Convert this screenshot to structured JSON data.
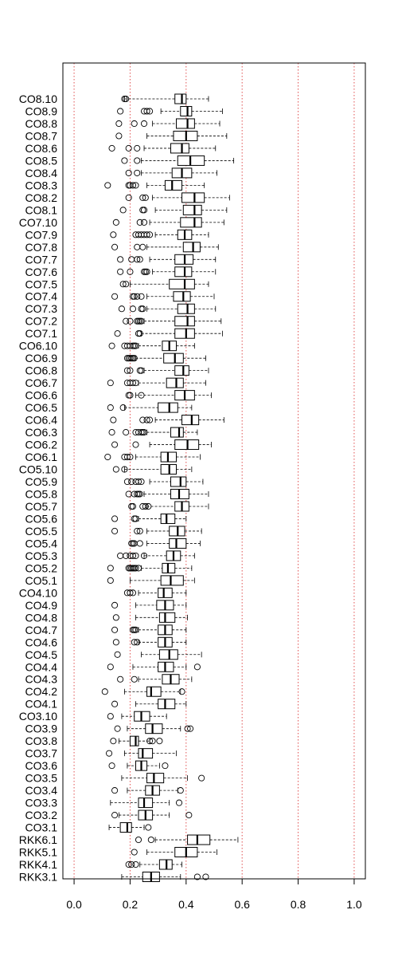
{
  "chart_data": {
    "type": "boxplot",
    "orientation": "horizontal",
    "title": "",
    "xlabel": "",
    "ylabel": "",
    "xlim": [
      -0.04,
      1.04
    ],
    "xticks": [
      0.0,
      0.2,
      0.4,
      0.6,
      0.8,
      1.0
    ],
    "xtick_labels": [
      "0.0",
      "0.2",
      "0.4",
      "0.6",
      "0.8",
      "1.0"
    ],
    "reference_lines": {
      "x": [
        0.0,
        0.2,
        0.4,
        0.6,
        0.8,
        1.0
      ],
      "color": "#e05050",
      "style": "dotted"
    },
    "grid": false,
    "box_order": "top-to-bottom",
    "colors": {
      "box": "#000000",
      "median": "#000000",
      "whisker": "#000000",
      "reference": "#e05050"
    },
    "series": [
      {
        "name": "CO8.10",
        "whislo": 0.18,
        "q1": 0.36,
        "median": 0.385,
        "q3": 0.4,
        "whishi": 0.48,
        "outliers": [
          0.18,
          0.185
        ]
      },
      {
        "name": "CO8.9",
        "whislo": 0.31,
        "q1": 0.38,
        "median": 0.405,
        "q3": 0.42,
        "whishi": 0.53,
        "outliers": [
          0.165,
          0.25,
          0.26,
          0.27
        ]
      },
      {
        "name": "CO8.8",
        "whislo": 0.28,
        "q1": 0.365,
        "median": 0.405,
        "q3": 0.43,
        "whishi": 0.52,
        "outliers": [
          0.16,
          0.215,
          0.25
        ]
      },
      {
        "name": "CO8.7",
        "whislo": 0.26,
        "q1": 0.355,
        "median": 0.4,
        "q3": 0.44,
        "whishi": 0.545,
        "outliers": [
          0.16
        ]
      },
      {
        "name": "CO8.6",
        "whislo": 0.25,
        "q1": 0.345,
        "median": 0.385,
        "q3": 0.41,
        "whishi": 0.505,
        "outliers": [
          0.135,
          0.195,
          0.225
        ]
      },
      {
        "name": "CO8.5",
        "whislo": 0.24,
        "q1": 0.37,
        "median": 0.415,
        "q3": 0.465,
        "whishi": 0.57,
        "outliers": [
          0.18,
          0.225
        ]
      },
      {
        "name": "CO8.4",
        "whislo": 0.24,
        "q1": 0.35,
        "median": 0.385,
        "q3": 0.42,
        "whishi": 0.51,
        "outliers": [
          0.195,
          0.225
        ]
      },
      {
        "name": "CO8.3",
        "whislo": 0.26,
        "q1": 0.325,
        "median": 0.35,
        "q3": 0.385,
        "whishi": 0.465,
        "outliers": [
          0.12,
          0.195,
          0.2,
          0.21,
          0.22
        ]
      },
      {
        "name": "CO8.2",
        "whislo": 0.28,
        "q1": 0.385,
        "median": 0.43,
        "q3": 0.465,
        "whishi": 0.555,
        "outliers": [
          0.195,
          0.245,
          0.255
        ]
      },
      {
        "name": "CO8.1",
        "whislo": 0.29,
        "q1": 0.39,
        "median": 0.43,
        "q3": 0.455,
        "whishi": 0.545,
        "outliers": [
          0.175,
          0.245,
          0.25
        ]
      },
      {
        "name": "CO7.10",
        "whislo": 0.27,
        "q1": 0.38,
        "median": 0.43,
        "q3": 0.455,
        "whishi": 0.535,
        "outliers": [
          0.15,
          0.235,
          0.25
        ]
      },
      {
        "name": "CO7.9",
        "whislo": 0.29,
        "q1": 0.37,
        "median": 0.395,
        "q3": 0.42,
        "whishi": 0.48,
        "outliers": [
          0.14,
          0.22,
          0.23,
          0.24,
          0.25,
          0.26,
          0.27
        ]
      },
      {
        "name": "CO7.8",
        "whislo": 0.26,
        "q1": 0.39,
        "median": 0.425,
        "q3": 0.45,
        "whishi": 0.515,
        "outliers": [
          0.145,
          0.225,
          0.245
        ]
      },
      {
        "name": "CO7.7",
        "whislo": 0.27,
        "q1": 0.36,
        "median": 0.395,
        "q3": 0.425,
        "whishi": 0.505,
        "outliers": [
          0.165,
          0.205,
          0.225,
          0.235
        ]
      },
      {
        "name": "CO7.6",
        "whislo": 0.28,
        "q1": 0.36,
        "median": 0.395,
        "q3": 0.42,
        "whishi": 0.505,
        "outliers": [
          0.165,
          0.2,
          0.25,
          0.255,
          0.26
        ]
      },
      {
        "name": "CO7.5",
        "whislo": 0.2,
        "q1": 0.34,
        "median": 0.395,
        "q3": 0.43,
        "whishi": 0.48,
        "outliers": [
          0.175,
          0.185
        ]
      },
      {
        "name": "CO7.4",
        "whislo": 0.26,
        "q1": 0.355,
        "median": 0.39,
        "q3": 0.415,
        "whishi": 0.5,
        "outliers": [
          0.145,
          0.21,
          0.215,
          0.225,
          0.24
        ]
      },
      {
        "name": "CO7.3",
        "whislo": 0.26,
        "q1": 0.37,
        "median": 0.405,
        "q3": 0.43,
        "whishi": 0.505,
        "outliers": [
          0.17,
          0.21,
          0.24,
          0.245
        ]
      },
      {
        "name": "CO7.2",
        "whislo": 0.25,
        "q1": 0.36,
        "median": 0.405,
        "q3": 0.43,
        "whishi": 0.525,
        "outliers": [
          0.185,
          0.2,
          0.225,
          0.23,
          0.235,
          0.24
        ]
      },
      {
        "name": "CO7.1",
        "whislo": 0.24,
        "q1": 0.36,
        "median": 0.4,
        "q3": 0.43,
        "whishi": 0.53,
        "outliers": [
          0.155,
          0.23,
          0.235
        ]
      },
      {
        "name": "CO6.10",
        "whislo": 0.23,
        "q1": 0.315,
        "median": 0.34,
        "q3": 0.365,
        "whishi": 0.43,
        "outliers": [
          0.135,
          0.18,
          0.19,
          0.2,
          0.21,
          0.215,
          0.22
        ]
      },
      {
        "name": "CO6.9",
        "whislo": 0.22,
        "q1": 0.32,
        "median": 0.36,
        "q3": 0.39,
        "whishi": 0.47,
        "outliers": [
          0.19,
          0.195,
          0.2,
          0.205,
          0.21,
          0.215
        ]
      },
      {
        "name": "CO6.8",
        "whislo": 0.25,
        "q1": 0.36,
        "median": 0.39,
        "q3": 0.41,
        "whishi": 0.48,
        "outliers": [
          0.19,
          0.2,
          0.235,
          0.24
        ]
      },
      {
        "name": "CO6.7",
        "whislo": 0.23,
        "q1": 0.33,
        "median": 0.365,
        "q3": 0.39,
        "whishi": 0.47,
        "outliers": [
          0.13,
          0.19,
          0.2,
          0.21,
          0.22
        ]
      },
      {
        "name": "CO6.6",
        "whislo": 0.22,
        "q1": 0.36,
        "median": 0.395,
        "q3": 0.43,
        "whishi": 0.49,
        "outliers": [
          0.195,
          0.2,
          0.24
        ]
      },
      {
        "name": "CO6.5",
        "whislo": 0.18,
        "q1": 0.3,
        "median": 0.34,
        "q3": 0.37,
        "whishi": 0.42,
        "outliers": [
          0.13,
          0.175
        ]
      },
      {
        "name": "CO6.4",
        "whislo": 0.29,
        "q1": 0.385,
        "median": 0.42,
        "q3": 0.445,
        "whishi": 0.535,
        "outliers": [
          0.14,
          0.245,
          0.26,
          0.27
        ]
      },
      {
        "name": "CO6.3",
        "whislo": 0.26,
        "q1": 0.345,
        "median": 0.375,
        "q3": 0.39,
        "whishi": 0.44,
        "outliers": [
          0.135,
          0.185,
          0.22,
          0.23,
          0.24,
          0.245,
          0.25
        ]
      },
      {
        "name": "CO6.2",
        "whislo": 0.27,
        "q1": 0.36,
        "median": 0.405,
        "q3": 0.445,
        "whishi": 0.49,
        "outliers": [
          0.145,
          0.22
        ]
      },
      {
        "name": "CO6.1",
        "whislo": 0.22,
        "q1": 0.31,
        "median": 0.335,
        "q3": 0.365,
        "whishi": 0.45,
        "outliers": [
          0.12,
          0.18,
          0.19,
          0.2
        ]
      },
      {
        "name": "CO5.10",
        "whislo": 0.18,
        "q1": 0.31,
        "median": 0.34,
        "q3": 0.365,
        "whishi": 0.42,
        "outliers": [
          0.15,
          0.18
        ]
      },
      {
        "name": "CO5.9",
        "whislo": 0.27,
        "q1": 0.345,
        "median": 0.38,
        "q3": 0.4,
        "whishi": 0.46,
        "outliers": [
          0.19,
          0.205,
          0.22,
          0.23,
          0.24
        ]
      },
      {
        "name": "CO5.8",
        "whislo": 0.25,
        "q1": 0.345,
        "median": 0.375,
        "q3": 0.41,
        "whishi": 0.48,
        "outliers": [
          0.195,
          0.215,
          0.225,
          0.23,
          0.235
        ]
      },
      {
        "name": "CO5.7",
        "whislo": 0.26,
        "q1": 0.36,
        "median": 0.385,
        "q3": 0.41,
        "whishi": 0.48,
        "outliers": [
          0.205,
          0.21,
          0.245,
          0.255,
          0.265
        ]
      },
      {
        "name": "CO5.6",
        "whislo": 0.23,
        "q1": 0.31,
        "median": 0.33,
        "q3": 0.36,
        "whishi": 0.4,
        "outliers": [
          0.145,
          0.215,
          0.22
        ]
      },
      {
        "name": "CO5.5",
        "whislo": 0.26,
        "q1": 0.34,
        "median": 0.37,
        "q3": 0.395,
        "whishi": 0.455,
        "outliers": [
          0.145,
          0.225,
          0.235
        ]
      },
      {
        "name": "CO5.4",
        "whislo": 0.26,
        "q1": 0.34,
        "median": 0.365,
        "q3": 0.4,
        "whishi": 0.45,
        "outliers": [
          0.205,
          0.21,
          0.215,
          0.235
        ]
      },
      {
        "name": "CO5.3",
        "whislo": 0.25,
        "q1": 0.33,
        "median": 0.355,
        "q3": 0.38,
        "whishi": 0.43,
        "outliers": [
          0.165,
          0.185,
          0.2,
          0.21,
          0.22,
          0.25
        ]
      },
      {
        "name": "CO5.2",
        "whislo": 0.24,
        "q1": 0.315,
        "median": 0.335,
        "q3": 0.36,
        "whishi": 0.42,
        "outliers": [
          0.13,
          0.195,
          0.2,
          0.205,
          0.21,
          0.215,
          0.22,
          0.23
        ]
      },
      {
        "name": "CO5.1",
        "whislo": 0.2,
        "q1": 0.31,
        "median": 0.345,
        "q3": 0.39,
        "whishi": 0.43,
        "outliers": [
          0.13
        ]
      },
      {
        "name": "CO4.10",
        "whislo": 0.23,
        "q1": 0.3,
        "median": 0.32,
        "q3": 0.35,
        "whishi": 0.4,
        "outliers": [
          0.19,
          0.2,
          0.21
        ]
      },
      {
        "name": "CO4.9",
        "whislo": 0.22,
        "q1": 0.295,
        "median": 0.325,
        "q3": 0.355,
        "whishi": 0.4,
        "outliers": [
          0.145
        ]
      },
      {
        "name": "CO4.8",
        "whislo": 0.22,
        "q1": 0.305,
        "median": 0.325,
        "q3": 0.36,
        "whishi": 0.405,
        "outliers": [
          0.15
        ]
      },
      {
        "name": "CO4.7",
        "whislo": 0.23,
        "q1": 0.3,
        "median": 0.325,
        "q3": 0.35,
        "whishi": 0.4,
        "outliers": [
          0.145,
          0.21,
          0.215,
          0.22
        ]
      },
      {
        "name": "CO4.6",
        "whislo": 0.23,
        "q1": 0.3,
        "median": 0.325,
        "q3": 0.35,
        "whishi": 0.4,
        "outliers": [
          0.15,
          0.215,
          0.225
        ]
      },
      {
        "name": "CO4.5",
        "whislo": 0.24,
        "q1": 0.305,
        "median": 0.34,
        "q3": 0.37,
        "whishi": 0.455,
        "outliers": [
          0.155
        ]
      },
      {
        "name": "CO4.4",
        "whislo": 0.21,
        "q1": 0.3,
        "median": 0.325,
        "q3": 0.355,
        "whishi": 0.4,
        "outliers": [
          0.13,
          0.44
        ]
      },
      {
        "name": "CO4.3",
        "whislo": 0.23,
        "q1": 0.315,
        "median": 0.345,
        "q3": 0.375,
        "whishi": 0.42,
        "outliers": [
          0.165,
          0.215
        ]
      },
      {
        "name": "CO4.2",
        "whislo": 0.18,
        "q1": 0.26,
        "median": 0.275,
        "q3": 0.31,
        "whishi": 0.38,
        "outliers": [
          0.11,
          0.385
        ]
      },
      {
        "name": "CO4.1",
        "whislo": 0.22,
        "q1": 0.3,
        "median": 0.325,
        "q3": 0.36,
        "whishi": 0.4,
        "outliers": [
          0.145
        ]
      },
      {
        "name": "CO3.10",
        "whislo": 0.17,
        "q1": 0.215,
        "median": 0.24,
        "q3": 0.27,
        "whishi": 0.33,
        "outliers": [
          0.13
        ]
      },
      {
        "name": "CO3.9",
        "whislo": 0.19,
        "q1": 0.255,
        "median": 0.28,
        "q3": 0.315,
        "whishi": 0.38,
        "outliers": [
          0.155,
          0.405,
          0.415
        ]
      },
      {
        "name": "CO3.8",
        "whislo": 0.16,
        "q1": 0.2,
        "median": 0.22,
        "q3": 0.23,
        "whishi": 0.27,
        "outliers": [
          0.14,
          0.27,
          0.28,
          0.305
        ]
      },
      {
        "name": "CO3.7",
        "whislo": 0.18,
        "q1": 0.23,
        "median": 0.245,
        "q3": 0.28,
        "whishi": 0.365,
        "outliers": [
          0.125
        ]
      },
      {
        "name": "CO3.6",
        "whislo": 0.19,
        "q1": 0.22,
        "median": 0.24,
        "q3": 0.26,
        "whishi": 0.305,
        "outliers": [
          0.135,
          0.325
        ]
      },
      {
        "name": "CO3.5",
        "whislo": 0.17,
        "q1": 0.26,
        "median": 0.285,
        "q3": 0.32,
        "whishi": 0.405,
        "outliers": [
          0.455
        ]
      },
      {
        "name": "CO3.4",
        "whislo": 0.19,
        "q1": 0.255,
        "median": 0.28,
        "q3": 0.305,
        "whishi": 0.37,
        "outliers": [
          0.145,
          0.38
        ]
      },
      {
        "name": "CO3.3",
        "whislo": 0.13,
        "q1": 0.23,
        "median": 0.25,
        "q3": 0.28,
        "whishi": 0.34,
        "outliers": [
          0.375
        ]
      },
      {
        "name": "CO3.2",
        "whislo": 0.16,
        "q1": 0.23,
        "median": 0.255,
        "q3": 0.28,
        "whishi": 0.34,
        "outliers": [
          0.145,
          0.41
        ]
      },
      {
        "name": "CO3.1",
        "whislo": 0.125,
        "q1": 0.165,
        "median": 0.19,
        "q3": 0.205,
        "whishi": 0.25,
        "outliers": [
          0.265
        ]
      },
      {
        "name": "RKK6.1",
        "whislo": 0.29,
        "q1": 0.405,
        "median": 0.44,
        "q3": 0.485,
        "whishi": 0.585,
        "outliers": [
          0.23,
          0.275
        ]
      },
      {
        "name": "RKK5.1",
        "whislo": 0.26,
        "q1": 0.36,
        "median": 0.4,
        "q3": 0.44,
        "whishi": 0.51,
        "outliers": [
          0.215
        ]
      },
      {
        "name": "RKK4.1",
        "whislo": 0.235,
        "q1": 0.305,
        "median": 0.33,
        "q3": 0.35,
        "whishi": 0.385,
        "outliers": [
          0.195,
          0.205,
          0.22
        ]
      },
      {
        "name": "RKK3.1",
        "whislo": 0.17,
        "q1": 0.245,
        "median": 0.275,
        "q3": 0.305,
        "whishi": 0.38,
        "outliers": [
          0.44,
          0.47
        ]
      }
    ]
  }
}
